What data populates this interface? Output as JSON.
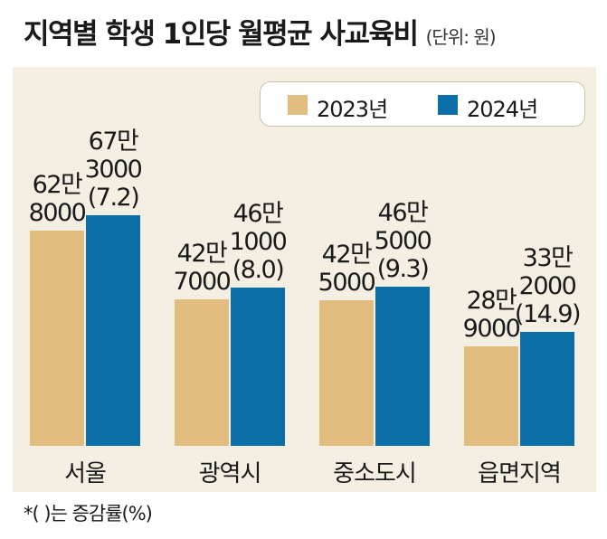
{
  "chart_data": {
    "type": "bar",
    "title": "지역별 학생 1인당 월평균 사교육비",
    "unit": "(단위: 원)",
    "categories": [
      "서울",
      "광역시",
      "중소도시",
      "읍면지역"
    ],
    "series": [
      {
        "name": "2023년",
        "color": "#e3bd80",
        "values": [
          628000,
          427000,
          425000,
          289000
        ],
        "labels": [
          [
            "62만",
            "8000"
          ],
          [
            "42만",
            "7000"
          ],
          [
            "42만",
            "5000"
          ],
          [
            "28만",
            "9000"
          ]
        ]
      },
      {
        "name": "2024년",
        "color": "#0a6ea7",
        "values": [
          673000,
          461000,
          465000,
          332000
        ],
        "labels": [
          [
            "67만",
            "3000",
            "(7.2)"
          ],
          [
            "46만",
            "1000",
            "(8.0)"
          ],
          [
            "46만",
            "5000",
            "(9.3)"
          ],
          [
            "33만",
            "2000",
            "(14.9)"
          ]
        ]
      }
    ],
    "footnote": "*(  )는 증감률(%)"
  }
}
